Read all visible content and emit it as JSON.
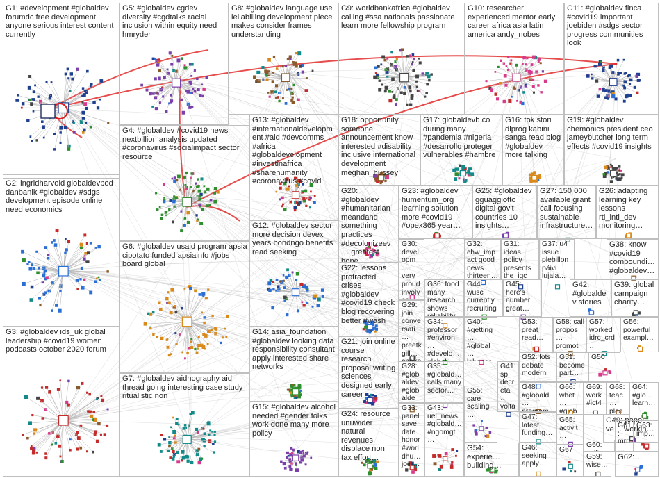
{
  "groups": [
    {
      "id": "G1",
      "label": "G1: #development #globaldev forumdc free development anyone serious interest content currently"
    },
    {
      "id": "G2",
      "label": "G2: ingridharvold globaldevpod danbanik #globaldev #sdgs development episode online need economics"
    },
    {
      "id": "G3",
      "label": "G3: #globaldev ids_uk global leadership #covid19 women podcasts october 2020 forum"
    },
    {
      "id": "G4",
      "label": "G4: #globaldev #covid19 news nextbillion analysis updated #coronavirus #socialimpact sector resource"
    },
    {
      "id": "G5",
      "label": "G5: #globaldev cgdev diversity #cgdtalks racial inclusion within equity need hmryder"
    },
    {
      "id": "G6",
      "label": "G6: #globaldev usaid program apsia cipotato funded apsiainfo #jobs board global"
    },
    {
      "id": "G7",
      "label": "G7: #globaldev aidnography aid thread going interesting case study ritualistic non"
    },
    {
      "id": "G8",
      "label": "G8: #globaldev language use leilabilling development piece makes consider frames understanding"
    },
    {
      "id": "G9",
      "label": "G9: worldbankafrica #globaldev calling #ssa nationals passionate learn more fellowship program"
    },
    {
      "id": "G10",
      "label": "G10: researcher experienced mentor early career africa asia latin america andy_nobes"
    },
    {
      "id": "G11",
      "label": "G11: #globaldev finca #covid19 important joebiden #sdgs sector progress communities look"
    },
    {
      "id": "G12",
      "label": "G12: #globaldev sector more decision devex years bondngo benefits read seeking"
    },
    {
      "id": "G13",
      "label": "G13: #globaldev #internationaldevelopment #aid #devcomms #africa #globaldevelopment #investinafrica #sharehumanity #coronavirus #covid"
    },
    {
      "id": "G14",
      "label": "G14: asia_foundation #globaldev looking data responsibility consultant apply interested share networks"
    },
    {
      "id": "G15",
      "label": "G15: #globaldev alcohol needed #gender folks work done many more policy"
    },
    {
      "id": "G16",
      "label": "G16: tok stori dlprog kabini sanga read blog #globaldev more talking"
    },
    {
      "id": "G17",
      "label": "G17: globaldevb co during many #pandemia #nigeria #desarrollo proteger vulnerables #hambre"
    },
    {
      "id": "G18",
      "label": "G18: opportunity someone announcement know interested #disability inclusive international development meghan_hussey"
    },
    {
      "id": "G19",
      "label": "G19: #globaldev chemonics president ceo jameybutcher long term effects #covid19 insights"
    },
    {
      "id": "G20",
      "label": "G20: #globaldev #humanitarian meandahq something practices #decolonizeev… greatest hope…"
    },
    {
      "id": "G21",
      "label": "G21: join online course research proposal writing sciences designed early career"
    },
    {
      "id": "G22",
      "label": "G22: lessons protracted crises #globaldev #covid19 check blog recovering better #wash"
    },
    {
      "id": "G23",
      "label": "G23: #globaldev humentum_org learning solution more #covid19 #opex365 year…"
    },
    {
      "id": "G24",
      "label": "G24: resource unuwider natural revenues displace non tax effort…"
    },
    {
      "id": "G25",
      "label": "G25: #globaldev gguaggiotto digital gov't countries 10 insights…"
    },
    {
      "id": "G26",
      "label": "G26: adapting learning key lessons rti_intl_dev monitoring…"
    },
    {
      "id": "G27",
      "label": "G27: 150 000 available grant call focusing sustainable infrastructure…"
    },
    {
      "id": "G28",
      "label": "G28: #globaldev #globalde… #internatio… #dev kitakazeth…"
    },
    {
      "id": "G29",
      "label": "G29: join conversati… preetkgill… chaired libbysmith… 17th sept…"
    },
    {
      "id": "G30",
      "label": "G30: developm… very proud involved important book…"
    },
    {
      "id": "G31",
      "label": "G31: ideas policy presents the_igc growth read more…"
    },
    {
      "id": "G32",
      "label": "G32: chw_impact good news thirteen…"
    },
    {
      "id": "G33",
      "label": "G33: panel save date honor #worldhu… join…"
    },
    {
      "id": "G34",
      "label": "G34: professor #environ… #develo… global…"
    },
    {
      "id": "G35",
      "label": "G35: #globald… calls many sector…"
    },
    {
      "id": "G36",
      "label": "G36: food many research shows reliability…"
    },
    {
      "id": "G37",
      "label": "G37: u4 issue plebillon päivi lujala…"
    },
    {
      "id": "G38",
      "label": "G38: know #covid19 compoundi… #globaldev…"
    },
    {
      "id": "G39",
      "label": "G39: global campaign charity…"
    },
    {
      "id": "G40",
      "label": "G40: #getting… #global… lebanes…"
    },
    {
      "id": "G41",
      "label": "G41: sp decreta… volta as aulas…"
    },
    {
      "id": "G42",
      "label": "G42: #globaldev stories"
    },
    {
      "id": "G43",
      "label": "G43: uel_news #globald… #ngomgt…"
    },
    {
      "id": "G44",
      "label": "G44: wusc currently recruiting…"
    },
    {
      "id": "G45",
      "label": "G45: here's number great…"
    },
    {
      "id": "G46",
      "label": "G46: seeking apply…"
    },
    {
      "id": "G47",
      "label": "G47: latest funding…"
    },
    {
      "id": "G48",
      "label": "G48: #globald… program…"
    },
    {
      "id": "G49",
      "label": "G49: paper ve… workin…"
    },
    {
      "id": "G50",
      "label": "G50"
    },
    {
      "id": "G51",
      "label": "G51: become part…"
    },
    {
      "id": "G52",
      "label": "G52: lots debate moderni…"
    },
    {
      "id": "G53",
      "label": "G53: great read…"
    },
    {
      "id": "G54",
      "label": "G54: experie… building…"
    },
    {
      "id": "G55",
      "label": "G55: care scaling…"
    },
    {
      "id": "G56",
      "label": "G56: powerful exampl…"
    },
    {
      "id": "G57",
      "label": "G57: worked idrc_crd…"
    },
    {
      "id": "G58",
      "label": "G58: call propos… promoti…"
    },
    {
      "id": "G59",
      "label": "G59: wise…"
    },
    {
      "id": "G60",
      "label": "G60: calling…"
    },
    {
      "id": "G61",
      "label": "G61: mrri… qual…"
    },
    {
      "id": "G62",
      "label": "G62:…"
    },
    {
      "id": "G63",
      "label": "G63: imp…"
    },
    {
      "id": "G64",
      "label": "G64: #glo… learn…"
    },
    {
      "id": "G65",
      "label": "G65: activit…"
    },
    {
      "id": "G66",
      "label": "G66: whet… #glob…"
    },
    {
      "id": "G67",
      "label": "G67"
    },
    {
      "id": "G68",
      "label": "G68: teac… plea…"
    },
    {
      "id": "G69",
      "label": "G69: work #ict4…"
    }
  ],
  "colors": {
    "background": "#ffffff",
    "cell_border": "#bfbfbf",
    "edge": "#b3b3b3",
    "highlight_edge": "#e02020",
    "label": "#262626"
  },
  "node_palette": [
    "#1f3f8f",
    "#2a6fd6",
    "#c42b2b",
    "#2f8f2f",
    "#7a3fa8",
    "#d98a1a",
    "#138a8a",
    "#8a5a2a",
    "#444444",
    "#d63a8a"
  ]
}
